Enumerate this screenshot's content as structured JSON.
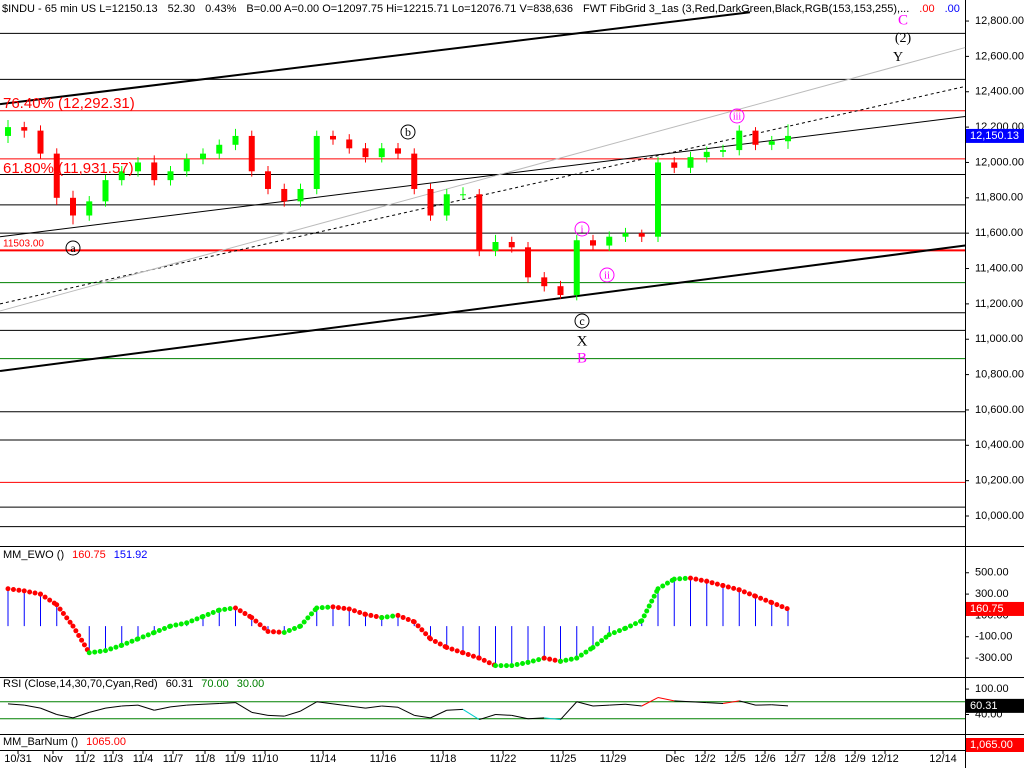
{
  "header": [
    {
      "text": "$INDU - 65 min  US  L=12150.13",
      "color": "#000000"
    },
    {
      "text": "52.30",
      "color": "#000000"
    },
    {
      "text": "0.43%",
      "color": "#000000"
    },
    {
      "text": "B=0.00  A=0.00  O=12097.75  Hi=12215.71  Lo=12076.71  V=838,636",
      "color": "#000000"
    },
    {
      "text": "FWT FibGrid 3_1as (3,Red,DarkGreen,Black,RGB(153,153,255),...",
      "color": "#000000"
    },
    {
      "text": ".00",
      "color": "#ff0000"
    },
    {
      "text": ".00",
      "color": "#0000ff"
    }
  ],
  "chart_data": [
    {
      "type": "candlestick",
      "open": [
        12150,
        12200,
        12180,
        12050,
        11800,
        11700,
        11780,
        11900,
        11950,
        12000,
        11900,
        11950,
        12020,
        12050,
        12100,
        12150,
        11950,
        11850,
        11780,
        11850,
        12150,
        12130,
        12080,
        12030,
        12080,
        12050,
        11850,
        11700,
        11820,
        11820,
        11500,
        11550,
        11520,
        11350,
        11300,
        11250,
        11560,
        11530,
        11580,
        11600,
        11580,
        12000,
        11970,
        12030,
        12060,
        12070,
        12180,
        12100,
        12120
      ],
      "high": [
        12240,
        12230,
        12210,
        12080,
        11840,
        11810,
        11930,
        11980,
        12030,
        12040,
        11980,
        12050,
        12080,
        12130,
        12190,
        12180,
        11980,
        11880,
        11880,
        12180,
        12180,
        12160,
        12110,
        12110,
        12110,
        12080,
        11880,
        11850,
        11860,
        11850,
        11590,
        11580,
        11550,
        11380,
        11330,
        11590,
        11590,
        11610,
        11630,
        11620,
        12030,
        12030,
        12060,
        12090,
        12100,
        12210,
        12200,
        12150,
        12215.71
      ],
      "low": [
        12110,
        12140,
        12020,
        11760,
        11650,
        11670,
        11750,
        11870,
        11920,
        11870,
        11870,
        11920,
        11990,
        12020,
        12070,
        11920,
        11820,
        11750,
        11750,
        11820,
        12100,
        12050,
        12000,
        12000,
        12020,
        11820,
        11670,
        11670,
        11790,
        11470,
        11470,
        11490,
        11320,
        11270,
        11230,
        11220,
        11500,
        11500,
        11550,
        11550,
        11550,
        11940,
        11940,
        12000,
        12030,
        12040,
        12070,
        12070,
        12076.71
      ],
      "close": [
        12200,
        12180,
        12050,
        11800,
        11700,
        11780,
        11900,
        11950,
        12000,
        11900,
        11950,
        12020,
        12050,
        12100,
        12150,
        11950,
        11850,
        11780,
        11850,
        12150,
        12130,
        12080,
        12030,
        12080,
        12050,
        11850,
        11700,
        11820,
        11820,
        11500,
        11550,
        11520,
        11350,
        11300,
        11250,
        11560,
        11530,
        11580,
        11600,
        11580,
        12000,
        11970,
        12030,
        12060,
        12070,
        12180,
        12100,
        12120,
        12150.13
      ],
      "up_color": "#00ff00",
      "down_color": "#ff0000",
      "ylim": [
        9836,
        12919
      ],
      "yticks": [
        {
          "value": 12800,
          "label": "12,800.00"
        },
        {
          "value": 12600,
          "label": "12,600.00"
        },
        {
          "value": 12400,
          "label": "12,400.00"
        },
        {
          "value": 12200,
          "label": "12,200.00"
        },
        {
          "value": 12000,
          "label": "12,000.00"
        },
        {
          "value": 11800,
          "label": "11,800.00"
        },
        {
          "value": 11600,
          "label": "11,600.00"
        },
        {
          "value": 11400,
          "label": "11,400.00"
        },
        {
          "value": 11200,
          "label": "11,200.00"
        },
        {
          "value": 11000,
          "label": "11,000.00"
        },
        {
          "value": 10800,
          "label": "10,800.00"
        },
        {
          "value": 10600,
          "label": "10,600.00"
        },
        {
          "value": 10400,
          "label": "10,400.00"
        },
        {
          "value": 10200,
          "label": "10,200.00"
        },
        {
          "value": 10000,
          "label": "10,000.00"
        }
      ],
      "levels": [
        {
          "value": 12730,
          "color": "#000000"
        },
        {
          "value": 12470,
          "color": "#000000"
        },
        {
          "value": 12292.31,
          "color": "#ff0000"
        },
        {
          "value": 12020,
          "color": "#ff0000"
        },
        {
          "value": 11931.57,
          "color": "#000000"
        },
        {
          "value": 11760,
          "color": "#000000"
        },
        {
          "value": 11600,
          "color": "#000000"
        },
        {
          "value": 11503,
          "color": "#ff0000",
          "width": 2
        },
        {
          "value": 11320,
          "color": "#008000"
        },
        {
          "value": 11150,
          "color": "#000000"
        },
        {
          "value": 11050,
          "color": "#000000"
        },
        {
          "value": 10890,
          "color": "#008000"
        },
        {
          "value": 10590,
          "color": "#000000"
        },
        {
          "value": 10430,
          "color": "#000000"
        },
        {
          "value": 10190,
          "color": "#ff0000"
        },
        {
          "value": 10050,
          "color": "#000000"
        },
        {
          "value": 9940,
          "color": "#000000"
        }
      ],
      "trendlines": [
        {
          "x": [
            -0.49,
            58.9
          ],
          "y": [
            10820,
            11530
          ],
          "color": "#000000",
          "width": 2
        },
        {
          "x": [
            -0.49,
            45.66
          ],
          "y": [
            12330,
            12850
          ],
          "color": "#000000",
          "width": 2
        },
        {
          "x": [
            -0.49,
            58.9
          ],
          "y": [
            11580,
            12260
          ],
          "color": "#000000",
          "width": 1
        },
        {
          "x": [
            -0.49,
            58.9
          ],
          "y": [
            11200,
            12430
          ],
          "color": "#000000",
          "width": 1,
          "dashed": true
        },
        {
          "x": [
            -0.49,
            58.9
          ],
          "y": [
            11160,
            12650
          ],
          "color": "#bbbbbb",
          "width": 1
        }
      ],
      "annotations": [
        {
          "text": "76.40% (12,292.31)",
          "color": "#ff0000"
        },
        {
          "text": "61.80% (11,931.57)",
          "color": "#ff0000"
        },
        {
          "text": "11503.00",
          "color": "#ff0000"
        },
        {
          "text": "a",
          "color": "#000000"
        },
        {
          "text": "b",
          "color": "#000000"
        },
        {
          "text": "c",
          "color": "#000000"
        },
        {
          "text": "X",
          "color": "#000000"
        },
        {
          "text": "B",
          "color": "#ff00ff"
        },
        {
          "text": "C",
          "color": "#ff00ff"
        },
        {
          "text": "(2)",
          "color": "#000000"
        },
        {
          "text": "Y",
          "color": "#000000"
        },
        {
          "text": "i",
          "color": "#ff00ff"
        },
        {
          "text": "ii",
          "color": "#ff00ff"
        },
        {
          "text": "iii",
          "color": "#ff00ff"
        }
      ],
      "last": {
        "value": 12150.13,
        "label": "12,150.13",
        "color": "#0000ff"
      },
      "categories": [
        "10/31",
        "Nov",
        "11/2",
        "11/3",
        "11/4",
        "11/7",
        "11/8",
        "11/9",
        "11/10",
        "11/14",
        "11/16",
        "11/18",
        "11/22",
        "11/25",
        "11/29",
        "Dec",
        "12/2",
        "12/5",
        "12/6",
        "12/7",
        "12/8",
        "12/9",
        "12/12",
        "12/14"
      ]
    },
    {
      "type": "ewo",
      "legend": [
        {
          "text": "MM_EWO ()",
          "color": "#000000"
        },
        {
          "text": "160.75",
          "color": "#ff0000"
        },
        {
          "text": "151.92",
          "color": "#0000ff"
        }
      ],
      "values": [
        350,
        330,
        300,
        200,
        0,
        -250,
        -230,
        -180,
        -120,
        -60,
        0,
        30,
        90,
        150,
        170,
        80,
        -50,
        -60,
        0,
        170,
        180,
        160,
        110,
        80,
        100,
        40,
        -120,
        -200,
        -250,
        -300,
        -370,
        -370,
        -340,
        -300,
        -330,
        -300,
        -200,
        -80,
        -20,
        50,
        350,
        440,
        450,
        420,
        380,
        340,
        280,
        220,
        160.75
      ],
      "bar_color": "#0000ff",
      "up_color": "#00ee00",
      "down_color": "#ff0000",
      "ylim": [
        -477,
        732
      ],
      "yticks": [
        {
          "value": 500,
          "label": "500.00"
        },
        {
          "value": 300,
          "label": "300.00"
        },
        {
          "value": 100,
          "label": "100.00"
        },
        {
          "value": -100,
          "label": "-100.00"
        },
        {
          "value": -300,
          "label": "-300.00"
        }
      ],
      "last": {
        "value": 160.75,
        "label": "160.75",
        "color": "#ff0000"
      }
    },
    {
      "type": "rsi",
      "legend": [
        {
          "text": "RSI (Close,14,30,70,Cyan,Red)",
          "color": "#000000"
        },
        {
          "text": "60.31",
          "color": "#000000"
        },
        {
          "text": "70.00",
          "color": "#008000"
        },
        {
          "text": "30.00",
          "color": "#008000"
        }
      ],
      "values": [
        65,
        62,
        55,
        40,
        32,
        45,
        55,
        60,
        62,
        50,
        58,
        62,
        64,
        66,
        68,
        45,
        38,
        36,
        48,
        70,
        65,
        60,
        55,
        60,
        57,
        38,
        32,
        50,
        52,
        28,
        40,
        38,
        30,
        32,
        28,
        70,
        60,
        62,
        64,
        60,
        80,
        72,
        70,
        68,
        66,
        72,
        62,
        63,
        60.31
      ],
      "levels": [
        70,
        30
      ],
      "level_color": "#008000",
      "color": "#000000",
      "low_color": "#00cccc",
      "high_color": "#ff0000",
      "ylim": [
        -6,
        126
      ],
      "yticks": [
        {
          "value": 100,
          "label": "100.00"
        },
        {
          "value": 40,
          "label": "40.00"
        }
      ],
      "last": {
        "value": 60.31,
        "label": "60.31",
        "color": "#000000"
      }
    },
    {
      "type": "barnum",
      "legend": [
        {
          "text": "MM_BarNum ()",
          "color": "#000000"
        },
        {
          "text": "1065.00",
          "color": "#ff0000"
        }
      ],
      "last": {
        "value": 1065,
        "label": "1,065.00",
        "color": "#ff0000"
      }
    }
  ]
}
